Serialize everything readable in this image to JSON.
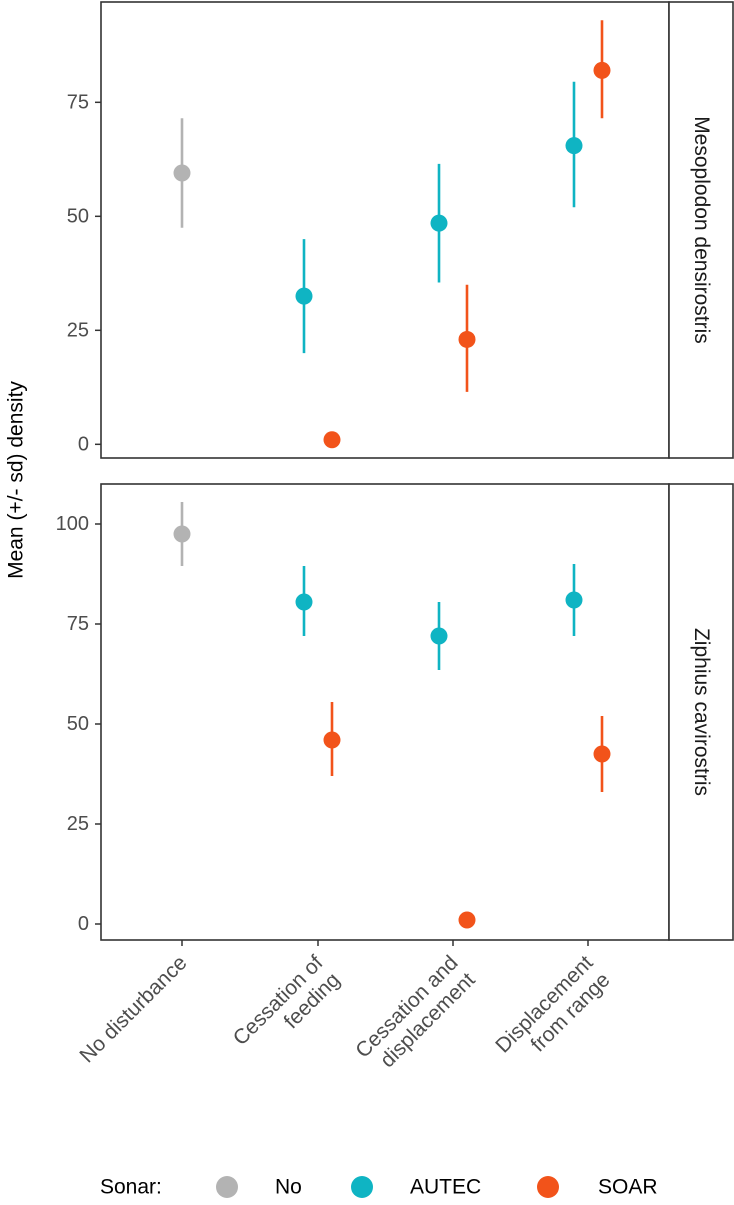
{
  "chart_data": {
    "type": "scatter",
    "ylabel": "Mean (+/- sd) density",
    "categories": [
      "No disturbance",
      "Cessation of feeding",
      "Cessation and displacement",
      "Displacement from range"
    ],
    "category_label_lines": [
      [
        "No disturbance"
      ],
      [
        "Cessation of",
        "feeding"
      ],
      [
        "Cessation and",
        "displacement"
      ],
      [
        "Displacement",
        "from range"
      ]
    ],
    "legend": {
      "title": "Sonar:",
      "items": [
        {
          "name": "No",
          "color": "#b3b3b3"
        },
        {
          "name": "AUTEC",
          "color": "#0fb4c3"
        },
        {
          "name": "SOAR",
          "color": "#f2531a"
        }
      ]
    },
    "panels": [
      {
        "strip": "Mesoplodon densirostris",
        "ylim": [
          -3,
          97
        ],
        "yticks": [
          0,
          25,
          50,
          75
        ],
        "series": [
          {
            "name": "No",
            "points": [
              {
                "category": "No disturbance",
                "mean": 59.5,
                "lower": 47.5,
                "upper": 71.5
              }
            ]
          },
          {
            "name": "AUTEC",
            "points": [
              {
                "category": "Cessation of feeding",
                "mean": 32.5,
                "lower": 20,
                "upper": 45
              },
              {
                "category": "Cessation and displacement",
                "mean": 48.5,
                "lower": 35.5,
                "upper": 61.5
              },
              {
                "category": "Displacement from range",
                "mean": 65.5,
                "lower": 52,
                "upper": 79.5
              }
            ]
          },
          {
            "name": "SOAR",
            "points": [
              {
                "category": "Cessation of feeding",
                "mean": 1,
                "lower": 1,
                "upper": 1
              },
              {
                "category": "Cessation and displacement",
                "mean": 23,
                "lower": 11.5,
                "upper": 35
              },
              {
                "category": "Displacement from range",
                "mean": 82,
                "lower": 71.5,
                "upper": 93
              }
            ]
          }
        ]
      },
      {
        "strip": "Ziphius cavirostris",
        "ylim": [
          -4,
          110
        ],
        "yticks": [
          0,
          25,
          50,
          75,
          100
        ],
        "series": [
          {
            "name": "No",
            "points": [
              {
                "category": "No disturbance",
                "mean": 97.5,
                "lower": 89.5,
                "upper": 105.5
              }
            ]
          },
          {
            "name": "AUTEC",
            "points": [
              {
                "category": "Cessation of feeding",
                "mean": 80.5,
                "lower": 72,
                "upper": 89.5
              },
              {
                "category": "Cessation and displacement",
                "mean": 72,
                "lower": 63.5,
                "upper": 80.5
              },
              {
                "category": "Displacement from range",
                "mean": 81,
                "lower": 72,
                "upper": 90
              }
            ]
          },
          {
            "name": "SOAR",
            "points": [
              {
                "category": "Cessation of feeding",
                "mean": 46,
                "lower": 37,
                "upper": 55.5
              },
              {
                "category": "Cessation and displacement",
                "mean": 1,
                "lower": 1,
                "upper": 1
              },
              {
                "category": "Displacement from range",
                "mean": 42.5,
                "lower": 33,
                "upper": 52
              }
            ]
          }
        ]
      }
    ]
  }
}
